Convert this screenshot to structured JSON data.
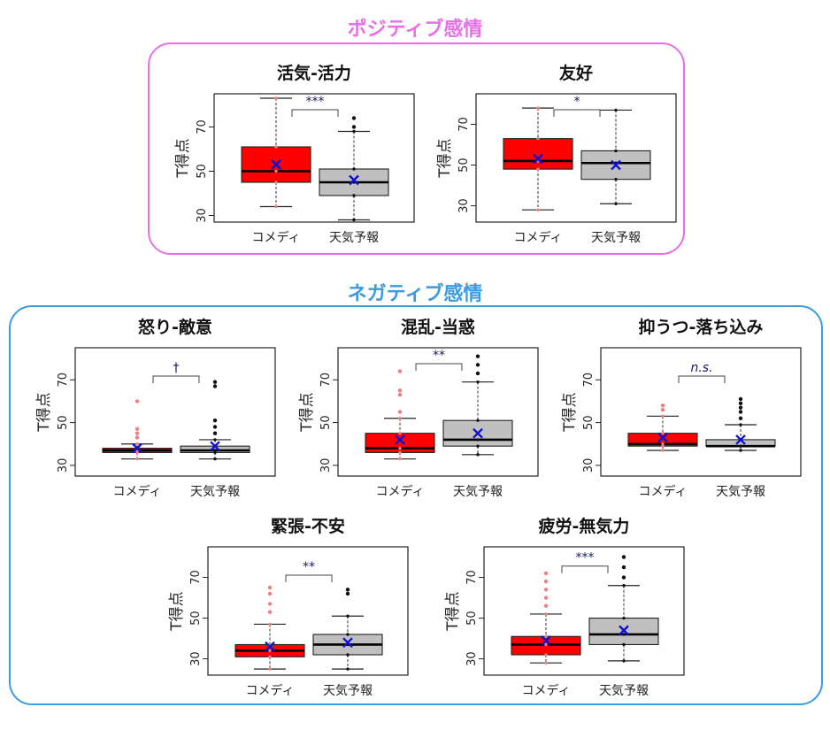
{
  "groups": {
    "positive": {
      "title": "ポジティブ感情",
      "color": "#E86FE6"
    },
    "negative": {
      "title": "ネガティブ感情",
      "color": "#3C9BE0"
    }
  },
  "colors": {
    "comedy_box": "#FF0000",
    "weather_box": "#C0C0C0",
    "mean_marker": "#1010D0",
    "comedy_points": "#F08080",
    "weather_points": "#111111"
  },
  "chart_data": [
    {
      "type": "box",
      "group": "positive",
      "title": "活気-活力",
      "ylabel": "T得点",
      "yticks": [
        30,
        50,
        70
      ],
      "ylim": [
        27,
        85
      ],
      "categories": [
        "コメディ",
        "天気予報"
      ],
      "series": [
        {
          "category": "コメディ",
          "whisker_low": 34,
          "q1": 45,
          "median": 50,
          "q3": 61,
          "whisker_high": 83,
          "mean": 53,
          "outliers": []
        },
        {
          "category": "天気予報",
          "whisker_low": 28,
          "q1": 39,
          "median": 45,
          "q3": 51,
          "whisker_high": 68,
          "mean": 46,
          "outliers": [
            70,
            74
          ]
        }
      ],
      "significance": "***"
    },
    {
      "type": "box",
      "group": "positive",
      "title": "友好",
      "ylabel": "T得点",
      "yticks": [
        30,
        50,
        70
      ],
      "ylim": [
        22,
        85
      ],
      "categories": [
        "コメディ",
        "天気予報"
      ],
      "series": [
        {
          "category": "コメディ",
          "whisker_low": 28,
          "q1": 48,
          "median": 52,
          "q3": 63,
          "whisker_high": 78,
          "mean": 53,
          "outliers": []
        },
        {
          "category": "天気予報",
          "whisker_low": 31,
          "q1": 43,
          "median": 51,
          "q3": 57,
          "whisker_high": 77,
          "mean": 50,
          "outliers": []
        }
      ],
      "significance": "*"
    },
    {
      "type": "box",
      "group": "negative",
      "title": "怒り-敵意",
      "ylabel": "T得点",
      "yticks": [
        30,
        50,
        70
      ],
      "ylim": [
        25,
        85
      ],
      "categories": [
        "コメディ",
        "天気予報"
      ],
      "series": [
        {
          "category": "コメディ",
          "whisker_low": 33,
          "q1": 36,
          "median": 37,
          "q3": 38,
          "whisker_high": 40,
          "mean": 38,
          "outliers": [
            43,
            45,
            47,
            60
          ]
        },
        {
          "category": "天気予報",
          "whisker_low": 33,
          "q1": 36,
          "median": 37,
          "q3": 39,
          "whisker_high": 42,
          "mean": 39,
          "outliers": [
            45,
            48,
            51,
            67,
            69
          ]
        }
      ],
      "significance": "†"
    },
    {
      "type": "box",
      "group": "negative",
      "title": "混乱-当惑",
      "ylabel": "T得点",
      "yticks": [
        30,
        50,
        70
      ],
      "ylim": [
        25,
        85
      ],
      "categories": [
        "コメディ",
        "天気予報"
      ],
      "series": [
        {
          "category": "コメディ",
          "whisker_low": 33,
          "q1": 36,
          "median": 38,
          "q3": 45,
          "whisker_high": 52,
          "mean": 42,
          "outliers": [
            55,
            63,
            65,
            74
          ]
        },
        {
          "category": "天気予報",
          "whisker_low": 35,
          "q1": 39,
          "median": 42,
          "q3": 51,
          "whisker_high": 69,
          "mean": 45,
          "outliers": [
            73,
            77,
            81
          ]
        }
      ],
      "significance": "**"
    },
    {
      "type": "box",
      "group": "negative",
      "title": "抑うつ-落ち込み",
      "ylabel": "T得点",
      "yticks": [
        30,
        50,
        70
      ],
      "ylim": [
        25,
        85
      ],
      "categories": [
        "コメディ",
        "天気予報"
      ],
      "series": [
        {
          "category": "コメディ",
          "whisker_low": 37,
          "q1": 39,
          "median": 40,
          "q3": 45,
          "whisker_high": 53,
          "mean": 43,
          "outliers": [
            56,
            58
          ]
        },
        {
          "category": "天気予報",
          "whisker_low": 37,
          "q1": 39,
          "median": 39,
          "q3": 42,
          "whisker_high": 49,
          "mean": 42,
          "outliers": [
            52,
            55,
            57,
            59,
            61
          ]
        }
      ],
      "significance": "n.s."
    },
    {
      "type": "box",
      "group": "negative",
      "title": "緊張-不安",
      "ylabel": "T得点",
      "yticks": [
        30,
        50,
        70
      ],
      "ylim": [
        22,
        85
      ],
      "categories": [
        "コメディ",
        "天気予報"
      ],
      "series": [
        {
          "category": "コメディ",
          "whisker_low": 25,
          "q1": 31,
          "median": 34,
          "q3": 37,
          "whisker_high": 47,
          "mean": 36,
          "outliers": [
            53,
            57,
            62,
            65
          ]
        },
        {
          "category": "天気予報",
          "whisker_low": 25,
          "q1": 32,
          "median": 37,
          "q3": 42,
          "whisker_high": 51,
          "mean": 38,
          "outliers": [
            62,
            64
          ]
        }
      ],
      "significance": "**"
    },
    {
      "type": "box",
      "group": "negative",
      "title": "疲労-無気力",
      "ylabel": "T得点",
      "yticks": [
        30,
        50,
        70
      ],
      "ylim": [
        22,
        85
      ],
      "categories": [
        "コメディ",
        "天気予報"
      ],
      "series": [
        {
          "category": "コメディ",
          "whisker_low": 28,
          "q1": 32,
          "median": 37,
          "q3": 41,
          "whisker_high": 52,
          "mean": 39,
          "outliers": [
            56,
            60,
            64,
            68,
            72
          ]
        },
        {
          "category": "天気予報",
          "whisker_low": 29,
          "q1": 37,
          "median": 42,
          "q3": 50,
          "whisker_high": 66,
          "mean": 44,
          "outliers": [
            70,
            75,
            80
          ]
        }
      ],
      "significance": "***"
    }
  ]
}
